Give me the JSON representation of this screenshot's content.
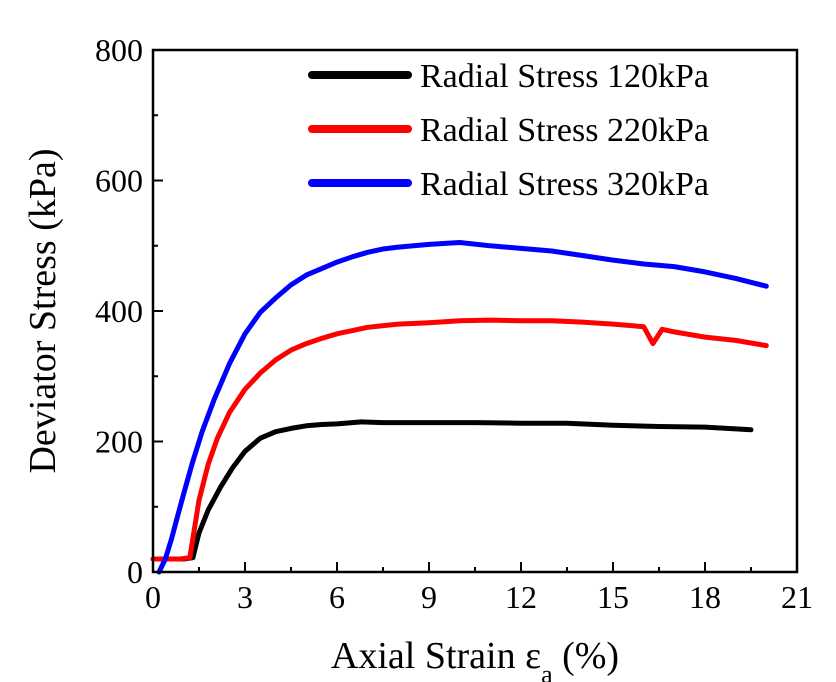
{
  "chart_data": {
    "type": "line",
    "xlabel": "Axial Strain ε",
    "xlabel_sub": "a",
    "xlabel_suffix": " (%)",
    "ylabel": "Deviator Stress (kPa)",
    "xlim": [
      0,
      21
    ],
    "ylim": [
      0,
      800
    ],
    "xticks": [
      0,
      3,
      6,
      9,
      12,
      15,
      18,
      21
    ],
    "yticks": [
      0,
      200,
      400,
      600,
      800
    ],
    "grid": false,
    "legend_position": "top-right",
    "series": [
      {
        "name": "Radial Stress 120kPa",
        "color": "#000000",
        "x": [
          0,
          1.0,
          1.3,
          1.5,
          1.8,
          2.2,
          2.6,
          3.0,
          3.5,
          4.0,
          4.5,
          5.0,
          5.5,
          6.0,
          6.8,
          7.5,
          9.0,
          10.5,
          12.0,
          13.5,
          15.0,
          16.5,
          18.0,
          19.5
        ],
        "y": [
          20,
          20,
          22,
          60,
          95,
          130,
          160,
          185,
          205,
          215,
          220,
          224,
          226,
          227,
          230,
          229,
          229,
          229,
          228,
          228,
          225,
          223,
          222,
          218
        ]
      },
      {
        "name": "Radial Stress 220kPa",
        "color": "#ff0000",
        "x": [
          0,
          0.9,
          1.2,
          1.5,
          1.8,
          2.1,
          2.5,
          3.0,
          3.5,
          4.0,
          4.5,
          5.0,
          5.5,
          6.0,
          7.0,
          8.0,
          9.0,
          10.0,
          11.0,
          12.0,
          13.0,
          14.0,
          15.0,
          16.0,
          16.3,
          16.6,
          17.0,
          18.0,
          19.0,
          20.0
        ],
        "y": [
          20,
          20,
          22,
          110,
          165,
          205,
          245,
          280,
          305,
          325,
          340,
          350,
          358,
          365,
          375,
          380,
          382,
          385,
          386,
          385,
          385,
          383,
          380,
          376,
          350,
          372,
          368,
          360,
          355,
          347
        ]
      },
      {
        "name": "Radial Stress 320kPa",
        "color": "#0000ff",
        "x": [
          0.2,
          0.4,
          0.6,
          0.8,
          1.0,
          1.3,
          1.6,
          2.0,
          2.5,
          3.0,
          3.5,
          4.0,
          4.5,
          5.0,
          5.5,
          6.0,
          6.5,
          7.0,
          7.5,
          8.0,
          9.0,
          10.0,
          11.0,
          12.0,
          13.0,
          14.0,
          15.0,
          16.0,
          17.0,
          18.0,
          19.0,
          20.0
        ],
        "y": [
          0,
          20,
          50,
          85,
          120,
          170,
          215,
          265,
          320,
          365,
          398,
          420,
          440,
          455,
          465,
          475,
          483,
          490,
          495,
          498,
          502,
          505,
          500,
          496,
          492,
          485,
          478,
          472,
          468,
          460,
          450,
          438
        ]
      }
    ]
  }
}
